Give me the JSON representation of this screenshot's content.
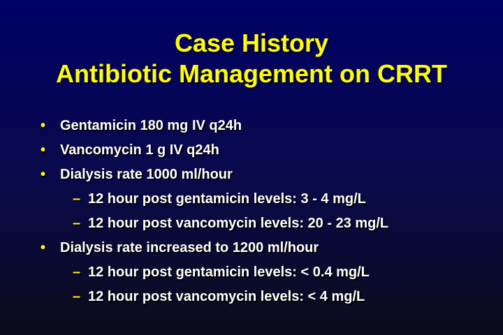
{
  "slide": {
    "title_line1": "Case History",
    "title_line2": "Antibiotic Management on CRRT",
    "bullet_glyph": "•",
    "dash_glyph": "–",
    "items": [
      {
        "level": 1,
        "text": "Gentamicin 180 mg IV q24h"
      },
      {
        "level": 1,
        "text": "Vancomycin 1 g IV q24h"
      },
      {
        "level": 1,
        "text": "Dialysis rate 1000 ml/hour"
      },
      {
        "level": 2,
        "text": "12 hour post gentamicin levels: 3 - 4 mg/L"
      },
      {
        "level": 2,
        "text": "12 hour post vancomycin levels: 20 - 23 mg/L"
      },
      {
        "level": 1,
        "text": "Dialysis rate increased to 1200 ml/hour"
      },
      {
        "level": 2,
        "text": "12 hour post gentamicin levels: < 0.4 mg/L"
      },
      {
        "level": 2,
        "text": "12 hour post vancomycin levels: < 4 mg/L"
      }
    ]
  },
  "colors": {
    "background": "#000066",
    "title": "#FFFF00",
    "body_text": "#FFFFFF",
    "bullet": "#FFFF00"
  }
}
